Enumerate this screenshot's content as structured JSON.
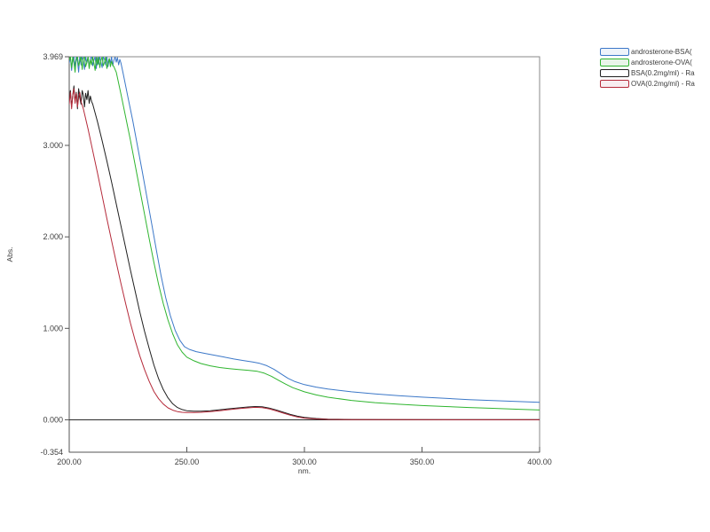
{
  "page": {
    "background": "#ffffff"
  },
  "chart_data": {
    "type": "line",
    "title": "",
    "xlabel": "nm.",
    "ylabel": "Abs.",
    "xlim": [
      200,
      400
    ],
    "ylim": [
      -0.354,
      3.969
    ],
    "grid": false,
    "zero_line": true,
    "legend_position": "top-right-outside",
    "x_ticks": [
      {
        "value": 200,
        "label": "200.00"
      },
      {
        "value": 250,
        "label": "250.00"
      },
      {
        "value": 300,
        "label": "300.00"
      },
      {
        "value": 350,
        "label": "350.00"
      },
      {
        "value": 400,
        "label": "400.00"
      }
    ],
    "y_ticks": [
      {
        "value": -0.354,
        "label": "-0.354"
      },
      {
        "value": 0,
        "label": "0.000"
      },
      {
        "value": 1,
        "label": "1.000"
      },
      {
        "value": 2,
        "label": "2.000"
      },
      {
        "value": 3,
        "label": "3.000"
      },
      {
        "value": 3.969,
        "label": "3.969"
      }
    ],
    "series": [
      {
        "key": "androsterone-bsa",
        "label": "androsterone-BSA(",
        "color": "#3c78c8",
        "legend_fill": "#eef3fa",
        "points": [
          [
            200,
            3.9
          ],
          [
            200.5,
            3.969
          ],
          [
            201,
            3.82
          ],
          [
            201.5,
            3.95
          ],
          [
            202,
            3.969
          ],
          [
            202.5,
            3.86
          ],
          [
            203,
            3.969
          ],
          [
            203.5,
            3.92
          ],
          [
            204,
            3.8
          ],
          [
            204.5,
            3.969
          ],
          [
            205,
            3.88
          ],
          [
            205.5,
            3.969
          ],
          [
            206,
            3.93
          ],
          [
            206.5,
            3.83
          ],
          [
            207,
            3.969
          ],
          [
            207.5,
            3.9
          ],
          [
            208,
            3.969
          ],
          [
            208.5,
            3.85
          ],
          [
            209,
            3.95
          ],
          [
            209.5,
            3.969
          ],
          [
            210,
            3.87
          ],
          [
            210.5,
            3.93
          ],
          [
            211,
            3.969
          ],
          [
            211.5,
            3.84
          ],
          [
            212,
            3.96
          ],
          [
            212.5,
            3.89
          ],
          [
            213,
            3.969
          ],
          [
            213.5,
            3.91
          ],
          [
            214,
            3.85
          ],
          [
            214.5,
            3.969
          ],
          [
            215,
            3.94
          ],
          [
            215.5,
            3.88
          ],
          [
            216,
            3.969
          ],
          [
            216.5,
            3.86
          ],
          [
            217,
            3.95
          ],
          [
            217.5,
            3.9
          ],
          [
            218,
            3.969
          ],
          [
            218.5,
            3.87
          ],
          [
            219,
            3.93
          ],
          [
            219.5,
            3.969
          ],
          [
            220,
            3.91
          ],
          [
            220.5,
            3.96
          ],
          [
            221,
            3.88
          ],
          [
            221.5,
            3.94
          ],
          [
            222,
            3.9
          ],
          [
            223,
            3.78
          ],
          [
            225,
            3.52
          ],
          [
            227,
            3.27
          ],
          [
            229,
            3.0
          ],
          [
            231,
            2.72
          ],
          [
            233,
            2.44
          ],
          [
            235,
            2.15
          ],
          [
            237,
            1.86
          ],
          [
            239,
            1.58
          ],
          [
            241,
            1.34
          ],
          [
            243,
            1.14
          ],
          [
            245,
            0.98
          ],
          [
            247,
            0.87
          ],
          [
            249,
            0.8
          ],
          [
            251,
            0.77
          ],
          [
            254,
            0.745
          ],
          [
            258,
            0.725
          ],
          [
            262,
            0.705
          ],
          [
            266,
            0.685
          ],
          [
            270,
            0.665
          ],
          [
            274,
            0.648
          ],
          [
            278,
            0.632
          ],
          [
            281,
            0.617
          ],
          [
            284,
            0.592
          ],
          [
            287,
            0.553
          ],
          [
            290,
            0.503
          ],
          [
            293,
            0.453
          ],
          [
            296,
            0.418
          ],
          [
            300,
            0.385
          ],
          [
            305,
            0.357
          ],
          [
            310,
            0.337
          ],
          [
            320,
            0.306
          ],
          [
            330,
            0.284
          ],
          [
            340,
            0.264
          ],
          [
            350,
            0.248
          ],
          [
            360,
            0.234
          ],
          [
            370,
            0.221
          ],
          [
            380,
            0.21
          ],
          [
            390,
            0.2
          ],
          [
            400,
            0.191
          ]
        ]
      },
      {
        "key": "androsterone-ova",
        "label": "androsterone-OVA(",
        "color": "#2fb52f",
        "legend_fill": "#e9f5e9",
        "points": [
          [
            200,
            3.93
          ],
          [
            200.5,
            3.969
          ],
          [
            201,
            3.85
          ],
          [
            201.5,
            3.969
          ],
          [
            202,
            3.9
          ],
          [
            202.5,
            3.8
          ],
          [
            203,
            3.95
          ],
          [
            203.5,
            3.969
          ],
          [
            204,
            3.87
          ],
          [
            204.5,
            3.92
          ],
          [
            205,
            3.969
          ],
          [
            205.5,
            3.83
          ],
          [
            206,
            3.95
          ],
          [
            206.5,
            3.969
          ],
          [
            207,
            3.86
          ],
          [
            207.5,
            3.91
          ],
          [
            208,
            3.969
          ],
          [
            208.5,
            3.84
          ],
          [
            209,
            3.94
          ],
          [
            209.5,
            3.88
          ],
          [
            210,
            3.969
          ],
          [
            210.5,
            3.9
          ],
          [
            211,
            3.82
          ],
          [
            211.5,
            3.96
          ],
          [
            212,
            3.88
          ],
          [
            212.5,
            3.969
          ],
          [
            213,
            3.85
          ],
          [
            213.5,
            3.93
          ],
          [
            214,
            3.969
          ],
          [
            214.5,
            3.87
          ],
          [
            215,
            3.91
          ],
          [
            215.5,
            3.969
          ],
          [
            216,
            3.84
          ],
          [
            216.5,
            3.9
          ],
          [
            217,
            3.95
          ],
          [
            217.5,
            3.86
          ],
          [
            218,
            3.92
          ],
          [
            218.5,
            3.88
          ],
          [
            219,
            3.86
          ],
          [
            220,
            3.8
          ],
          [
            222,
            3.56
          ],
          [
            224,
            3.31
          ],
          [
            226,
            3.06
          ],
          [
            228,
            2.79
          ],
          [
            230,
            2.52
          ],
          [
            232,
            2.25
          ],
          [
            234,
            1.98
          ],
          [
            236,
            1.72
          ],
          [
            238,
            1.48
          ],
          [
            240,
            1.27
          ],
          [
            242,
            1.09
          ],
          [
            244,
            0.94
          ],
          [
            246,
            0.82
          ],
          [
            248,
            0.74
          ],
          [
            250,
            0.685
          ],
          [
            253,
            0.645
          ],
          [
            256,
            0.615
          ],
          [
            260,
            0.59
          ],
          [
            264,
            0.572
          ],
          [
            268,
            0.56
          ],
          [
            272,
            0.55
          ],
          [
            276,
            0.542
          ],
          [
            280,
            0.53
          ],
          [
            283,
            0.51
          ],
          [
            286,
            0.476
          ],
          [
            289,
            0.432
          ],
          [
            292,
            0.39
          ],
          [
            295,
            0.352
          ],
          [
            300,
            0.306
          ],
          [
            305,
            0.272
          ],
          [
            310,
            0.247
          ],
          [
            320,
            0.212
          ],
          [
            330,
            0.188
          ],
          [
            340,
            0.17
          ],
          [
            350,
            0.156
          ],
          [
            360,
            0.145
          ],
          [
            370,
            0.135
          ],
          [
            380,
            0.126
          ],
          [
            390,
            0.116
          ],
          [
            400,
            0.107
          ]
        ]
      },
      {
        "key": "bsa",
        "label": "BSA(0.2mg/ml) - Ra",
        "color": "#1f1f1f",
        "legend_fill": "#ffffff",
        "points": [
          [
            200,
            3.5
          ],
          [
            200.5,
            3.6
          ],
          [
            201,
            3.42
          ],
          [
            201.5,
            3.55
          ],
          [
            202,
            3.65
          ],
          [
            202.5,
            3.48
          ],
          [
            203,
            3.58
          ],
          [
            203.5,
            3.4
          ],
          [
            204,
            3.62
          ],
          [
            204.5,
            3.52
          ],
          [
            205,
            3.45
          ],
          [
            205.5,
            3.6
          ],
          [
            206,
            3.55
          ],
          [
            206.5,
            3.42
          ],
          [
            207,
            3.57
          ],
          [
            207.5,
            3.5
          ],
          [
            208,
            3.6
          ],
          [
            208.5,
            3.46
          ],
          [
            209,
            3.54
          ],
          [
            209.5,
            3.48
          ],
          [
            210,
            3.45
          ],
          [
            212,
            3.26
          ],
          [
            214,
            3.05
          ],
          [
            216,
            2.83
          ],
          [
            218,
            2.6
          ],
          [
            220,
            2.36
          ],
          [
            222,
            2.12
          ],
          [
            224,
            1.88
          ],
          [
            226,
            1.64
          ],
          [
            228,
            1.41
          ],
          [
            230,
            1.18
          ],
          [
            232,
            0.97
          ],
          [
            234,
            0.78
          ],
          [
            236,
            0.6
          ],
          [
            238,
            0.45
          ],
          [
            240,
            0.33
          ],
          [
            242,
            0.24
          ],
          [
            244,
            0.175
          ],
          [
            246,
            0.135
          ],
          [
            248,
            0.112
          ],
          [
            250,
            0.1
          ],
          [
            253,
            0.094
          ],
          [
            256,
            0.094
          ],
          [
            260,
            0.1
          ],
          [
            264,
            0.11
          ],
          [
            268,
            0.121
          ],
          [
            272,
            0.131
          ],
          [
            276,
            0.14
          ],
          [
            279,
            0.145
          ],
          [
            282,
            0.142
          ],
          [
            285,
            0.129
          ],
          [
            288,
            0.108
          ],
          [
            291,
            0.083
          ],
          [
            294,
            0.059
          ],
          [
            297,
            0.04
          ],
          [
            300,
            0.027
          ],
          [
            305,
            0.014
          ],
          [
            310,
            0.008
          ],
          [
            320,
            0.004
          ],
          [
            340,
            0.003
          ],
          [
            360,
            0.002
          ],
          [
            380,
            0.002
          ],
          [
            400,
            0.002
          ]
        ]
      },
      {
        "key": "ova",
        "label": "OVA(0.2mg/ml) - Ra",
        "color": "#b52a3a",
        "legend_fill": "#f8edf0",
        "points": [
          [
            200,
            3.45
          ],
          [
            200.5,
            3.58
          ],
          [
            201,
            3.4
          ],
          [
            201.5,
            3.55
          ],
          [
            202,
            3.62
          ],
          [
            202.5,
            3.46
          ],
          [
            203,
            3.57
          ],
          [
            203.5,
            3.42
          ],
          [
            204,
            3.52
          ],
          [
            204.5,
            3.58
          ],
          [
            205,
            3.48
          ],
          [
            206,
            3.4
          ],
          [
            208,
            3.18
          ],
          [
            210,
            2.94
          ],
          [
            212,
            2.7
          ],
          [
            214,
            2.45
          ],
          [
            216,
            2.2
          ],
          [
            218,
            1.96
          ],
          [
            220,
            1.72
          ],
          [
            222,
            1.49
          ],
          [
            224,
            1.27
          ],
          [
            226,
            1.06
          ],
          [
            228,
            0.87
          ],
          [
            230,
            0.7
          ],
          [
            232,
            0.55
          ],
          [
            234,
            0.42
          ],
          [
            236,
            0.31
          ],
          [
            238,
            0.23
          ],
          [
            240,
            0.172
          ],
          [
            242,
            0.131
          ],
          [
            244,
            0.105
          ],
          [
            246,
            0.09
          ],
          [
            248,
            0.082
          ],
          [
            250,
            0.079
          ],
          [
            253,
            0.079
          ],
          [
            256,
            0.082
          ],
          [
            260,
            0.089
          ],
          [
            264,
            0.099
          ],
          [
            268,
            0.111
          ],
          [
            272,
            0.122
          ],
          [
            276,
            0.131
          ],
          [
            279,
            0.136
          ],
          [
            282,
            0.133
          ],
          [
            285,
            0.12
          ],
          [
            288,
            0.098
          ],
          [
            291,
            0.073
          ],
          [
            294,
            0.05
          ],
          [
            297,
            0.031
          ],
          [
            300,
            0.018
          ],
          [
            305,
            0.009
          ],
          [
            310,
            0.005
          ],
          [
            320,
            0.003
          ],
          [
            340,
            0.002
          ],
          [
            360,
            0.001
          ],
          [
            380,
            0.001
          ],
          [
            400,
            0.001
          ]
        ]
      }
    ],
    "axis_colors": {
      "border": "#8a8a8a",
      "axis": "#555555",
      "zero_line": "#2b2b2b",
      "tick_text": "#3d3d3d"
    }
  }
}
